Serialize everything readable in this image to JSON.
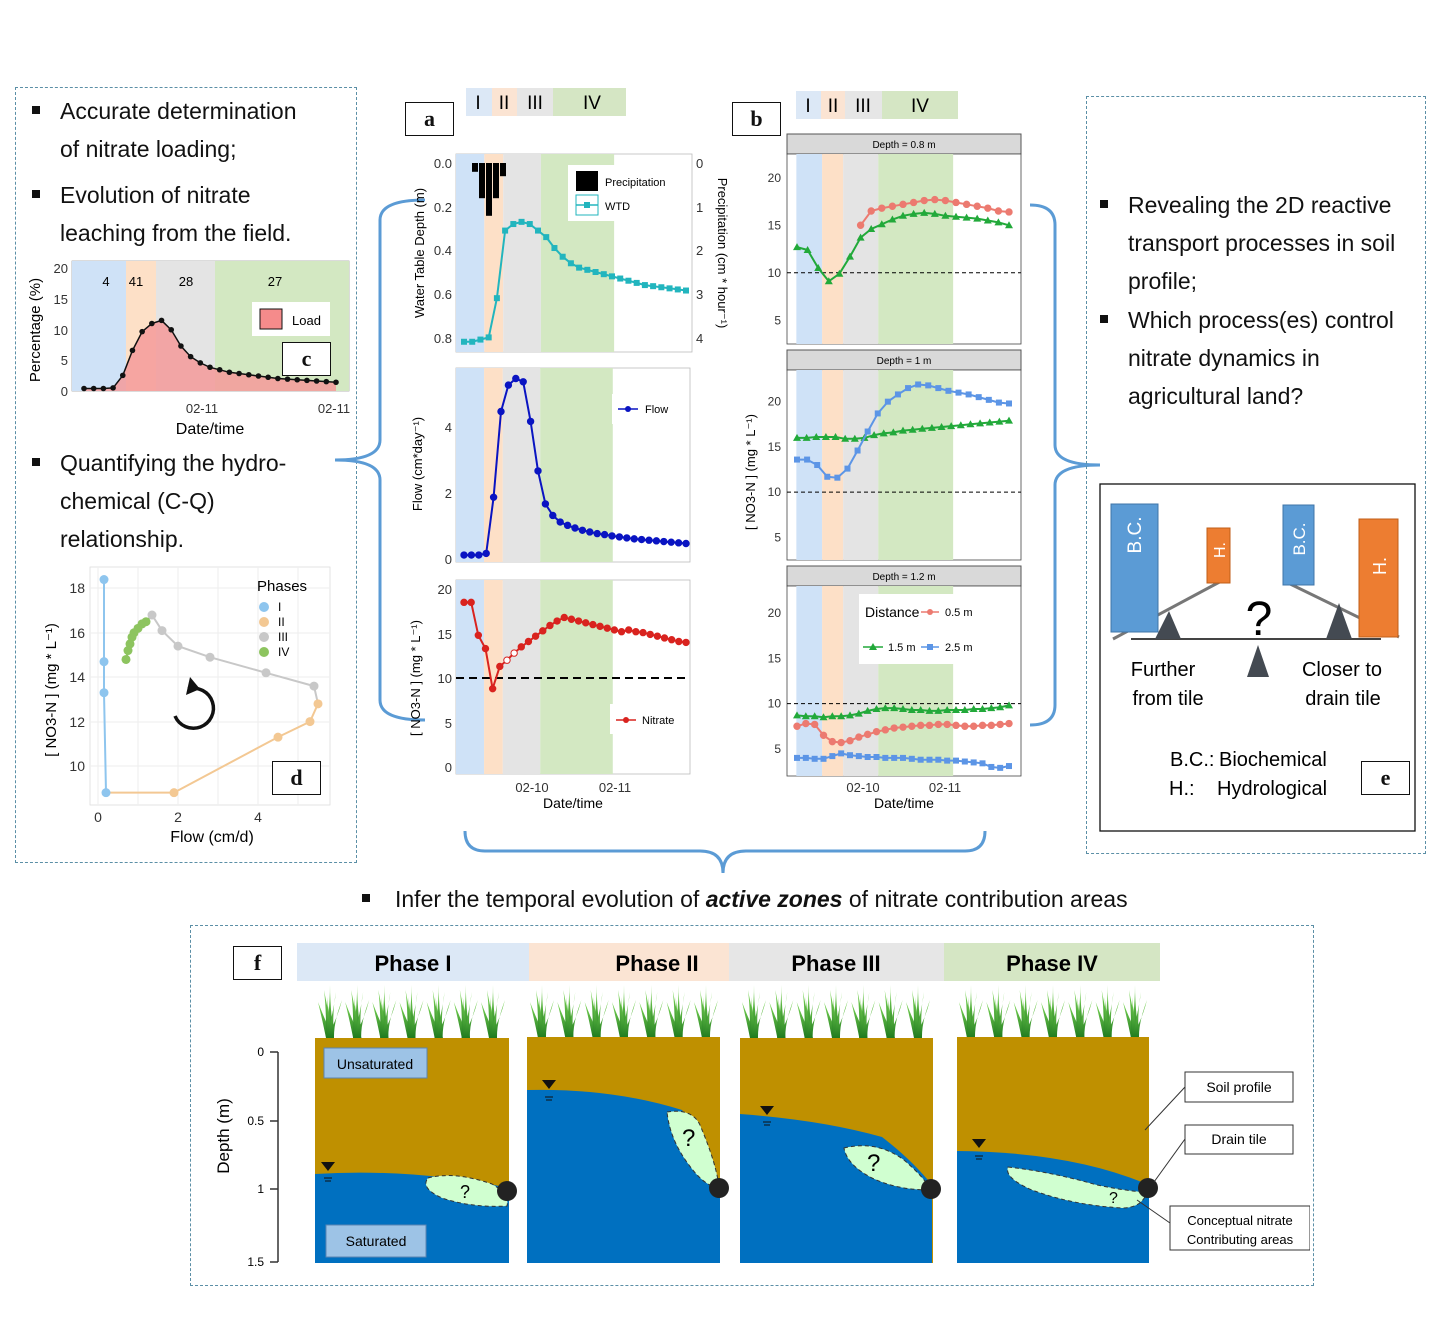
{
  "colors": {
    "phase1": "#dce8f6",
    "phase2": "#fbe4d3",
    "phase3": "#e6e6e6",
    "phase4": "#d5e6c4",
    "phase1_plot": "#cfe2f7",
    "phase2_plot": "#fde0c7",
    "phase3_plot": "#e4e4e4",
    "phase4_plot": "#d3e8c2",
    "wtd": "#22b5be",
    "flow": "#0a14c2",
    "nitrate": "#d9231f",
    "d05": "#ec7a70",
    "d15": "#22a93a",
    "d25": "#5c95e6",
    "bc": "#5b9bd5",
    "h": "#ed7d31",
    "soil": "#bf9000",
    "water": "#0070c0",
    "zone": "#d0ffd0",
    "bracket": "#5b9bd5"
  },
  "phase_labels": [
    "I",
    "II",
    "III",
    "IV"
  ],
  "left_top": {
    "bullet1": "Accurate determination of nitrate loading;",
    "bullet1_lines": [
      "Accurate determination",
      "of nitrate loading;"
    ],
    "bullet2_lines": [
      "Evolution of nitrate",
      "leaching from the field."
    ]
  },
  "left_mid": {
    "bullet3_lines": [
      "Quantifying the hydro-",
      "chemical (C-Q)",
      "relationship."
    ]
  },
  "panel_labels": {
    "a": "a",
    "b": "b",
    "c": "c",
    "d": "d",
    "e": "e",
    "f": "f"
  },
  "panel_c": {
    "ylabel": "Percentage (%)",
    "xlabel": "Date/time",
    "yticks": [
      "0",
      "5",
      "10",
      "15",
      "20"
    ],
    "xticks": [
      "02-11",
      "02-11"
    ],
    "phase_pct": [
      "4",
      "41",
      "28",
      "27"
    ],
    "legend": "Load"
  },
  "panel_d": {
    "ylabel": "[ NO3-N ]  (mg * L⁻¹)",
    "xlabel": "Flow (cm/d)",
    "yticks": [
      "10",
      "12",
      "14",
      "16",
      "18"
    ],
    "xticks": [
      "0",
      "2",
      "4"
    ],
    "legend_title": "Phases",
    "legend_items": [
      "I",
      "II",
      "III",
      "IV"
    ]
  },
  "panel_a": {
    "top": {
      "ylabel": "Water Table Depth (m)",
      "ylabel_right": "Precipitation (cm * hour⁻¹)",
      "yticks": [
        "0.0",
        "0.2",
        "0.4",
        "0.6",
        "0.8"
      ],
      "yticks_right": [
        "0",
        "1",
        "2",
        "3",
        "4"
      ],
      "legend": [
        "Precipitation",
        "WTD"
      ]
    },
    "mid": {
      "ylabel": "Flow (cm*day⁻¹)",
      "yticks": [
        "0",
        "2",
        "4"
      ],
      "legend": "Flow"
    },
    "bot": {
      "ylabel": "[ NO3-N ] (mg * L⁻¹)",
      "yticks": [
        "0",
        "5",
        "10",
        "15",
        "20"
      ],
      "legend": "Nitrate"
    },
    "xticks": [
      "02-10",
      "02-11"
    ],
    "xlabel": "Date/time"
  },
  "panel_b": {
    "facets": [
      "Depth = 0.8 m",
      "Depth = 1 m",
      "Depth = 1.2 m"
    ],
    "ylabel": "[ NO3-N ]  (mg * L⁻¹)",
    "yticks": [
      "5",
      "10",
      "15",
      "20"
    ],
    "xticks": [
      "02-10",
      "02-11"
    ],
    "xlabel": "Date/time",
    "legend_title": "Distance",
    "legend_items": [
      "0.5 m",
      "1.5 m",
      "2.5 m"
    ]
  },
  "right_top": {
    "bullet1_lines": [
      "Revealing the 2D reactive",
      "transport processes in soil",
      "profile;"
    ],
    "bullet2_lines": [
      "Which process(es) control",
      "nitrate dynamics in",
      "agricultural land?"
    ]
  },
  "panel_e": {
    "bc": "B.C.",
    "h": "H.",
    "question": "?",
    "left_caption": [
      "Further",
      "from tile"
    ],
    "right_caption": [
      "Closer to",
      "drain tile"
    ],
    "def_bc_key": "B.C.:",
    "def_bc_val": "Biochemical",
    "def_h_key": "H.:",
    "def_h_val": "Hydrological"
  },
  "bottom_bullet": {
    "pre": "Infer the temporal evolution of ",
    "em": "active zones",
    "post": " of nitrate contribution areas"
  },
  "panel_f": {
    "phase_titles": [
      "Phase I",
      "Phase II",
      "Phase III",
      "Phase IV"
    ],
    "ylabel": "Depth (m)",
    "yticks": [
      "0",
      "0.5",
      "1",
      "1.5"
    ],
    "unsaturated": "Unsaturated",
    "saturated": "Saturated",
    "callouts": [
      "Soil profile",
      "Drain tile",
      "Conceptual nitrate Contributing areas"
    ],
    "callout_lines": [
      "Conceptual nitrate",
      "Contributing areas"
    ],
    "zone_q": "?"
  },
  "chart_data": [
    {
      "type": "area",
      "title": "",
      "xlabel": "Date/time",
      "ylabel": "Percentage (%)",
      "series": [
        {
          "name": "Load",
          "values": [
            0.4,
            0.4,
            0.4,
            0.5,
            2.5,
            6.5,
            9.5,
            10.8,
            11.3,
            9.8,
            7.2,
            5.5,
            4.5,
            3.8,
            3.4,
            3.0,
            2.8,
            2.6,
            2.4,
            2.2,
            2.0,
            1.9,
            1.8,
            1.7,
            1.6,
            1.5,
            1.4
          ]
        }
      ],
      "ylim": [
        0,
        20
      ]
    },
    {
      "type": "line",
      "title": "",
      "xlabel": "Date/time",
      "ylabel": "Water Table Depth (m)",
      "series": [
        {
          "name": "WTD",
          "values": [
            0.82,
            0.82,
            0.81,
            0.8,
            0.62,
            0.31,
            0.28,
            0.27,
            0.28,
            0.31,
            0.34,
            0.39,
            0.43,
            0.46,
            0.48,
            0.49,
            0.5,
            0.51,
            0.52,
            0.53,
            0.54,
            0.55,
            0.56,
            0.565,
            0.57,
            0.575,
            0.58,
            0.585
          ]
        },
        {
          "name": "Precipitation",
          "values": [
            0.2,
            0.8,
            1.2,
            0.8,
            0.3
          ]
        }
      ],
      "ylim": [
        0.85,
        0
      ]
    },
    {
      "type": "line",
      "title": "",
      "xlabel": "Date/time",
      "ylabel": "Flow (cm*day⁻¹)",
      "series": [
        {
          "name": "Flow",
          "values": [
            0.15,
            0.15,
            0.15,
            0.2,
            1.9,
            4.5,
            5.3,
            5.5,
            5.4,
            4.2,
            2.7,
            1.7,
            1.35,
            1.15,
            1.05,
            0.97,
            0.9,
            0.85,
            0.8,
            0.77,
            0.73,
            0.7,
            0.67,
            0.64,
            0.62,
            0.6,
            0.58,
            0.56,
            0.54,
            0.52,
            0.5
          ]
        }
      ],
      "ylim": [
        0,
        5.7
      ]
    },
    {
      "type": "line",
      "title": "",
      "xlabel": "Date/time",
      "ylabel": "[ NO3-N ] (mg * L⁻¹)",
      "series": [
        {
          "name": "Nitrate",
          "values": [
            18.5,
            18.5,
            14.8,
            13.3,
            8.8,
            11.3,
            12.0,
            12.8,
            13.5,
            14.1,
            14.7,
            15.3,
            15.9,
            16.4,
            16.8,
            16.6,
            16.4,
            16.2,
            16.0,
            15.8,
            15.6,
            15.4,
            15.2,
            15.4,
            15.2,
            15.1,
            14.9,
            14.7,
            14.5,
            14.3,
            14.1,
            14.0
          ]
        }
      ],
      "ylim": [
        0,
        21
      ]
    },
    {
      "type": "scatter",
      "title": "",
      "xlabel": "Flow (cm/d)",
      "ylabel": "[ NO3-N ]  (mg * L⁻¹)",
      "series": [
        {
          "name": "I",
          "x": [
            0.15,
            0.15,
            0.15,
            0.2
          ],
          "y": [
            18.4,
            14.7,
            13.3,
            8.8
          ]
        },
        {
          "name": "II",
          "x": [
            1.9,
            4.5,
            5.3,
            5.5
          ],
          "y": [
            8.8,
            11.3,
            12.0,
            12.8
          ]
        },
        {
          "name": "III",
          "x": [
            5.4,
            4.2,
            2.8,
            2.0,
            1.6,
            1.35
          ],
          "y": [
            13.6,
            14.2,
            14.9,
            15.4,
            16.1,
            16.8
          ]
        },
        {
          "name": "IV",
          "x": [
            1.2,
            1.1,
            1.0,
            0.9,
            0.85,
            0.8,
            0.75,
            0.7
          ],
          "y": [
            16.5,
            16.4,
            16.2,
            16.0,
            15.8,
            15.5,
            15.2,
            14.8
          ]
        }
      ],
      "xlim": [
        -0.2,
        5.6
      ],
      "ylim": [
        8.5,
        18.9
      ]
    },
    {
      "type": "line",
      "title": "Depth = 0.8 m",
      "xlabel": "Date/time",
      "ylabel": "[ NO3-N ]  (mg * L⁻¹)",
      "series": [
        {
          "name": "0.5 m",
          "values": [
            null,
            null,
            null,
            null,
            null,
            null,
            15.0,
            16.5,
            16.8,
            17.0,
            17.2,
            17.4,
            17.6,
            17.7,
            17.6,
            17.4,
            17.2,
            17.0,
            16.8,
            16.5,
            16.4
          ]
        },
        {
          "name": "1.5 m",
          "values": [
            12.7,
            12.4,
            10.5,
            9.1,
            9.9,
            11.7,
            13.7,
            14.6,
            15.1,
            15.6,
            16.0,
            16.2,
            16.3,
            16.2,
            16.0,
            15.9,
            15.8,
            15.7,
            15.5,
            15.3,
            15.0
          ]
        }
      ],
      "ylim": [
        2.5,
        22.5
      ]
    },
    {
      "type": "line",
      "title": "Depth = 1 m",
      "xlabel": "Date/time",
      "ylabel": "[ NO3-N ]  (mg * L⁻¹)",
      "series": [
        {
          "name": "1.5 m",
          "values": [
            16.0,
            16.0,
            16.1,
            16.1,
            16.1,
            15.9,
            15.9,
            16.0,
            16.3,
            16.5,
            16.6,
            16.8,
            16.9,
            17.0,
            17.1,
            17.2,
            17.3,
            17.4,
            17.5,
            17.6,
            17.7,
            17.8,
            17.9
          ]
        },
        {
          "name": "2.5 m",
          "values": [
            13.6,
            13.6,
            13.0,
            11.7,
            11.6,
            12.6,
            14.6,
            16.7,
            18.7,
            20.0,
            20.8,
            21.5,
            21.9,
            21.8,
            21.5,
            21.2,
            21.0,
            20.8,
            20.5,
            20.2,
            19.9,
            19.8
          ]
        }
      ],
      "ylim": [
        2.5,
        23.5
      ]
    },
    {
      "type": "line",
      "title": "Depth = 1.2 m",
      "xlabel": "Date/time",
      "ylabel": "[ NO3-N ]  (mg * L⁻¹)",
      "series": [
        {
          "name": "0.5 m",
          "values": [
            7.5,
            7.8,
            7.7,
            6.5,
            5.8,
            5.7,
            5.9,
            6.3,
            6.6,
            6.9,
            7.1,
            7.3,
            7.4,
            7.5,
            7.6,
            7.6,
            7.7,
            7.7,
            7.6,
            7.5,
            7.5,
            7.6,
            7.6,
            7.7,
            7.8
          ]
        },
        {
          "name": "1.5 m",
          "values": [
            8.7,
            8.6,
            8.6,
            8.5,
            8.6,
            8.6,
            8.7,
            8.9,
            9.2,
            9.4,
            9.5,
            9.5,
            9.4,
            9.3,
            9.3,
            9.2,
            9.2,
            9.3,
            9.3,
            9.3,
            9.4,
            9.4,
            9.5,
            9.6,
            9.8
          ]
        },
        {
          "name": "2.5 m",
          "values": [
            4.0,
            4.0,
            3.9,
            3.9,
            4.2,
            4.5,
            4.3,
            4.2,
            4.1,
            4.1,
            4.0,
            4.0,
            4.0,
            3.9,
            3.8,
            3.8,
            3.8,
            3.7,
            3.7,
            3.6,
            3.5,
            3.4,
            3.0,
            2.9,
            3.1
          ]
        }
      ],
      "ylim": [
        2,
        23
      ]
    }
  ]
}
